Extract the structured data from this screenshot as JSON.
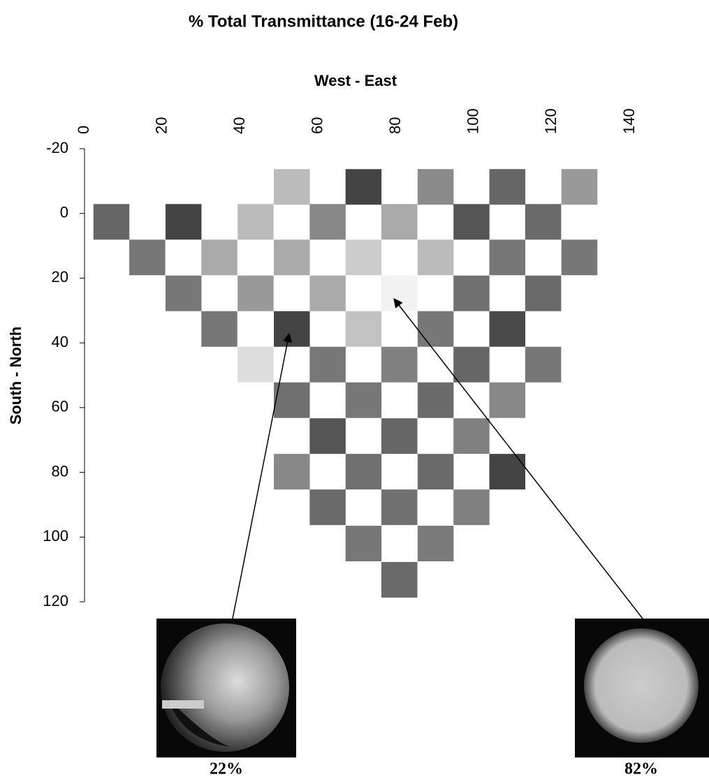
{
  "chart_data": {
    "type": "grid",
    "title": "% Total Transmittance (16-24 Feb)",
    "x_label": "West - East",
    "y_label": "South - North",
    "xlim": [
      0,
      140
    ],
    "xticks": [
      0,
      20,
      40,
      60,
      80,
      100,
      120,
      140
    ],
    "ylim": [
      -20,
      120
    ],
    "yticks": [
      -20,
      0,
      20,
      40,
      60,
      80,
      100,
      120
    ],
    "y_inverted": true,
    "annotations": [
      "22%",
      "82%"
    ],
    "cells": [
      {
        "x": 53.2,
        "y": -8.2,
        "color": "#bbbbbb"
      },
      {
        "x": 71.6,
        "y": -8.2,
        "color": "#444444"
      },
      {
        "x": 90.1,
        "y": -8.2,
        "color": "#8a8a8a"
      },
      {
        "x": 108.5,
        "y": -8.2,
        "color": "#666666"
      },
      {
        "x": 127.0,
        "y": -8.2,
        "color": "#999999"
      },
      {
        "x": 6.9,
        "y": 2.6,
        "color": "#666666"
      },
      {
        "x": 25.4,
        "y": 2.6,
        "color": "#444444"
      },
      {
        "x": 43.9,
        "y": 2.6,
        "color": "#bbbbbb"
      },
      {
        "x": 62.4,
        "y": 2.6,
        "color": "#888888"
      },
      {
        "x": 80.8,
        "y": 2.6,
        "color": "#aaaaaa"
      },
      {
        "x": 99.3,
        "y": 2.6,
        "color": "#555555"
      },
      {
        "x": 117.7,
        "y": 2.6,
        "color": "#6a6a6a"
      },
      {
        "x": 16.1,
        "y": 13.6,
        "color": "#777777"
      },
      {
        "x": 34.6,
        "y": 13.6,
        "color": "#aaaaaa"
      },
      {
        "x": 53.2,
        "y": 13.6,
        "color": "#aaaaaa"
      },
      {
        "x": 71.6,
        "y": 13.6,
        "color": "#cccccc"
      },
      {
        "x": 90.1,
        "y": 13.6,
        "color": "#bbbbbb"
      },
      {
        "x": 108.5,
        "y": 13.6,
        "color": "#777777"
      },
      {
        "x": 127.0,
        "y": 13.6,
        "color": "#777777"
      },
      {
        "x": 25.4,
        "y": 24.7,
        "color": "#777777"
      },
      {
        "x": 43.9,
        "y": 24.7,
        "color": "#999999"
      },
      {
        "x": 62.4,
        "y": 24.7,
        "color": "#aaaaaa"
      },
      {
        "x": 80.8,
        "y": 24.7,
        "color": "#f2f2f2"
      },
      {
        "x": 99.3,
        "y": 24.7,
        "color": "#707070"
      },
      {
        "x": 117.7,
        "y": 24.7,
        "color": "#6a6a6a"
      },
      {
        "x": 34.6,
        "y": 35.7,
        "color": "#777777"
      },
      {
        "x": 53.2,
        "y": 35.7,
        "color": "#444444"
      },
      {
        "x": 71.6,
        "y": 35.7,
        "color": "#c2c2c2"
      },
      {
        "x": 90.1,
        "y": 35.7,
        "color": "#777777"
      },
      {
        "x": 108.5,
        "y": 35.7,
        "color": "#4a4a4a"
      },
      {
        "x": 43.9,
        "y": 46.7,
        "color": "#dddddd"
      },
      {
        "x": 62.4,
        "y": 46.7,
        "color": "#777777"
      },
      {
        "x": 80.8,
        "y": 46.7,
        "color": "#808080"
      },
      {
        "x": 99.3,
        "y": 46.7,
        "color": "#666666"
      },
      {
        "x": 117.7,
        "y": 46.7,
        "color": "#777777"
      },
      {
        "x": 53.2,
        "y": 57.7,
        "color": "#707070"
      },
      {
        "x": 71.6,
        "y": 57.7,
        "color": "#777777"
      },
      {
        "x": 90.1,
        "y": 57.7,
        "color": "#6a6a6a"
      },
      {
        "x": 108.5,
        "y": 57.7,
        "color": "#888888"
      },
      {
        "x": 62.4,
        "y": 68.8,
        "color": "#555555"
      },
      {
        "x": 80.8,
        "y": 68.8,
        "color": "#666666"
      },
      {
        "x": 99.3,
        "y": 68.8,
        "color": "#808080"
      },
      {
        "x": 53.2,
        "y": 79.8,
        "color": "#888888"
      },
      {
        "x": 71.6,
        "y": 79.8,
        "color": "#707070"
      },
      {
        "x": 90.1,
        "y": 79.8,
        "color": "#6a6a6a"
      },
      {
        "x": 108.5,
        "y": 79.8,
        "color": "#444444"
      },
      {
        "x": 62.4,
        "y": 90.8,
        "color": "#6a6a6a"
      },
      {
        "x": 80.8,
        "y": 90.8,
        "color": "#707070"
      },
      {
        "x": 99.3,
        "y": 90.8,
        "color": "#808080"
      },
      {
        "x": 71.6,
        "y": 102.0,
        "color": "#777777"
      },
      {
        "x": 90.1,
        "y": 102.0,
        "color": "#7a7a7a"
      },
      {
        "x": 80.8,
        "y": 113.2,
        "color": "#6a6a6a"
      }
    ]
  }
}
